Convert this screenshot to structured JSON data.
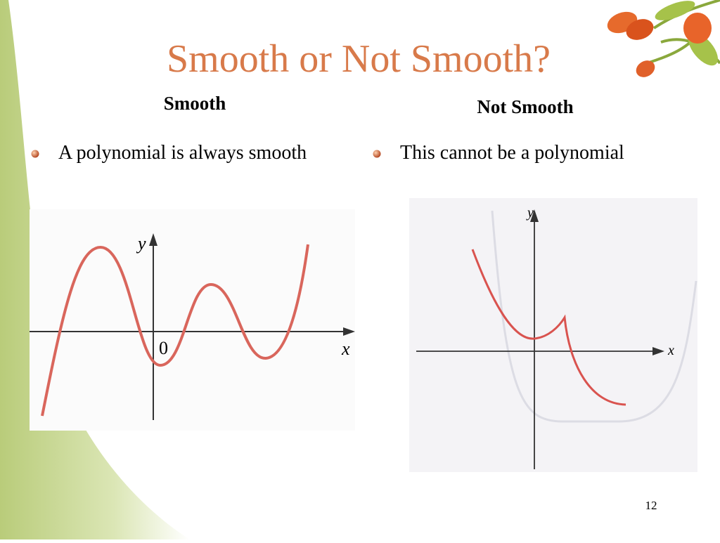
{
  "title": "Smooth or Not Smooth?",
  "left": {
    "heading": "Smooth",
    "bullet": "A polynomial is always smooth",
    "graph": {
      "y_label": "y",
      "origin_label": "0",
      "x_label": "x"
    }
  },
  "right": {
    "heading": "Not Smooth",
    "bullet": "This cannot be a polynomial",
    "graph": {
      "y_label": "y",
      "x_label": "x"
    }
  },
  "page_number": "12"
}
